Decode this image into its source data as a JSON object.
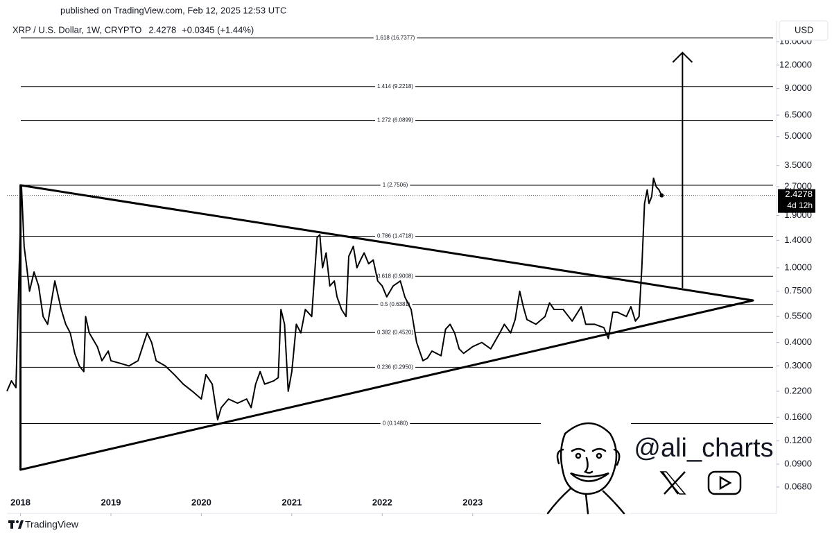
{
  "chart_data": {
    "type": "line",
    "header": "published on TradingView.com, Feb 12, 2025 12:53 UTC",
    "symbol": "XRP / U.S. Dollar, 1W, CRYPTO",
    "change": "+0.0345 (+1.44%)",
    "currency": "USD",
    "countdown": "4d 12h",
    "watermark": "@ali_charts",
    "brand": "TradingView",
    "log_y": true,
    "color": "#000000",
    "xlim": [
      2017.85,
      2026.36
    ],
    "ylim": [
      0.0624,
      19.8
    ],
    "xticks": [
      2018,
      2019,
      2020,
      2021,
      2022,
      2023
    ],
    "yticks": [
      {
        "value": 16,
        "label": "16.0000"
      },
      {
        "value": 12,
        "label": "12.0000"
      },
      {
        "value": 9,
        "label": "9.0000"
      },
      {
        "value": 6.5,
        "label": "6.5000"
      },
      {
        "value": 5,
        "label": "5.0000"
      },
      {
        "value": 3.5,
        "label": "3.5000"
      },
      {
        "value": 2.7,
        "label": "2.7000"
      },
      {
        "value": 1.9,
        "label": "1.9000"
      },
      {
        "value": 1.4,
        "label": "1.4000"
      },
      {
        "value": 1,
        "label": "1.0000"
      },
      {
        "value": 0.75,
        "label": "0.7500"
      },
      {
        "value": 0.55,
        "label": "0.5500"
      },
      {
        "value": 0.4,
        "label": "0.4000"
      },
      {
        "value": 0.3,
        "label": "0.3000"
      },
      {
        "value": 0.22,
        "label": "0.2200"
      },
      {
        "value": 0.16,
        "label": "0.1600"
      },
      {
        "value": 0.12,
        "label": "0.1200"
      },
      {
        "value": 0.09,
        "label": "0.0900"
      },
      {
        "value": 0.068,
        "label": "0.0680"
      }
    ],
    "fib_levels": [
      {
        "value": 16.7377,
        "label": "1.618 (16.7377)"
      },
      {
        "value": 9.2218,
        "label": "1.414 (9.2218)"
      },
      {
        "value": 6.0899,
        "label": "1.272 (6.0899)"
      },
      {
        "value": 2.7506,
        "label": "1 (2.7506)"
      },
      {
        "value": 1.4718,
        "label": "0.786 (1.4718)"
      },
      {
        "value": 0.9008,
        "label": "0.618 (0.9008)"
      },
      {
        "value": 0.6381,
        "label": "0.5 (0.6381)"
      },
      {
        "value": 0.452,
        "label": "0.382 (0.4520)"
      },
      {
        "value": 0.295,
        "label": "0.236 (0.2950)"
      },
      {
        "value": 0.148,
        "label": "0 (0.1480)"
      }
    ],
    "triangle": {
      "x": [
        2018.0,
        2026.1,
        2018.0
      ],
      "values": [
        2.7506,
        0.67,
        0.084
      ]
    },
    "arrow": {
      "x": 2025.32,
      "values": [
        0.78,
        14
      ]
    },
    "x": [
      2017.85,
      2017.9,
      2017.95,
      2018.01,
      2018.04,
      2018.07,
      2018.1,
      2018.15,
      2018.2,
      2018.25,
      2018.3,
      2018.38,
      2018.45,
      2018.5,
      2018.55,
      2018.6,
      2018.65,
      2018.7,
      2018.72,
      2018.76,
      2018.85,
      2018.9,
      2018.97,
      2019.0,
      2019.1,
      2019.2,
      2019.3,
      2019.4,
      2019.45,
      2019.5,
      2019.6,
      2019.7,
      2019.8,
      2019.9,
      2020.0,
      2020.05,
      2020.12,
      2020.18,
      2020.22,
      2020.3,
      2020.4,
      2020.5,
      2020.55,
      2020.6,
      2020.65,
      2020.7,
      2020.8,
      2020.85,
      2020.88,
      2020.92,
      2020.96,
      2021.0,
      2021.05,
      2021.1,
      2021.15,
      2021.22,
      2021.28,
      2021.31,
      2021.34,
      2021.38,
      2021.42,
      2021.47,
      2021.5,
      2021.55,
      2021.6,
      2021.63,
      2021.68,
      2021.72,
      2021.76,
      2021.8,
      2021.85,
      2021.9,
      2021.95,
      2022.0,
      2022.05,
      2022.12,
      2022.2,
      2022.25,
      2022.32,
      2022.38,
      2022.45,
      2022.5,
      2022.55,
      2022.65,
      2022.7,
      2022.75,
      2022.8,
      2022.85,
      2022.9,
      2023.0,
      2023.1,
      2023.2,
      2023.3,
      2023.35,
      2023.42,
      2023.47,
      2023.52,
      2023.56,
      2023.6,
      2023.7,
      2023.8,
      2023.85,
      2023.9,
      2024.0,
      2024.1,
      2024.2,
      2024.25,
      2024.35,
      2024.45,
      2024.5,
      2024.55,
      2024.6,
      2024.7,
      2024.75,
      2024.8,
      2024.84,
      2024.87,
      2024.9,
      2024.93,
      2024.95,
      2024.98,
      2025.0,
      2025.03,
      2025.06,
      2025.09
    ],
    "values": [
      0.22,
      0.25,
      0.23,
      2.75,
      1.3,
      1.0,
      0.75,
      0.95,
      0.8,
      0.55,
      0.5,
      0.85,
      0.6,
      0.5,
      0.45,
      0.35,
      0.3,
      0.28,
      0.55,
      0.45,
      0.38,
      0.32,
      0.36,
      0.32,
      0.31,
      0.3,
      0.32,
      0.45,
      0.4,
      0.32,
      0.3,
      0.27,
      0.24,
      0.22,
      0.2,
      0.27,
      0.24,
      0.155,
      0.18,
      0.2,
      0.19,
      0.2,
      0.18,
      0.24,
      0.28,
      0.24,
      0.25,
      0.26,
      0.6,
      0.5,
      0.22,
      0.28,
      0.5,
      0.45,
      0.6,
      0.55,
      1.45,
      1.5,
      1.0,
      1.2,
      0.8,
      0.85,
      0.7,
      0.6,
      0.55,
      1.15,
      1.3,
      1.0,
      1.1,
      1.2,
      1.05,
      1.1,
      0.85,
      0.8,
      0.7,
      0.8,
      0.85,
      0.7,
      0.6,
      0.4,
      0.32,
      0.33,
      0.36,
      0.34,
      0.47,
      0.5,
      0.45,
      0.37,
      0.35,
      0.38,
      0.4,
      0.37,
      0.45,
      0.5,
      0.45,
      0.53,
      0.75,
      0.62,
      0.53,
      0.5,
      0.55,
      0.65,
      0.6,
      0.6,
      0.52,
      0.62,
      0.5,
      0.5,
      0.48,
      0.42,
      0.58,
      0.58,
      0.55,
      0.62,
      0.52,
      0.55,
      1.0,
      2.2,
      2.6,
      2.2,
      2.4,
      3.0,
      2.7,
      2.6,
      2.4278
    ]
  }
}
